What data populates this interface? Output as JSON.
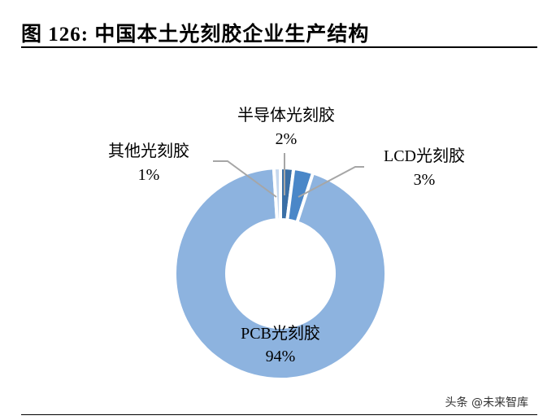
{
  "title": "图  126:  中国本土光刻胶企业生产结构",
  "watermark": "头条 @未来智库",
  "chart_data": {
    "type": "pie",
    "donut": true,
    "categories": [
      "半导体光刻胶",
      "LCD光刻胶",
      "PCB光刻胶",
      "其他光刻胶"
    ],
    "values": [
      2,
      3,
      94,
      1
    ],
    "value_labels": [
      "2%",
      "3%",
      "94%",
      "1%"
    ],
    "colors": [
      "#3a6fa6",
      "#4a87c8",
      "#8db3df",
      "#c6d8ee"
    ],
    "legend": "none"
  }
}
